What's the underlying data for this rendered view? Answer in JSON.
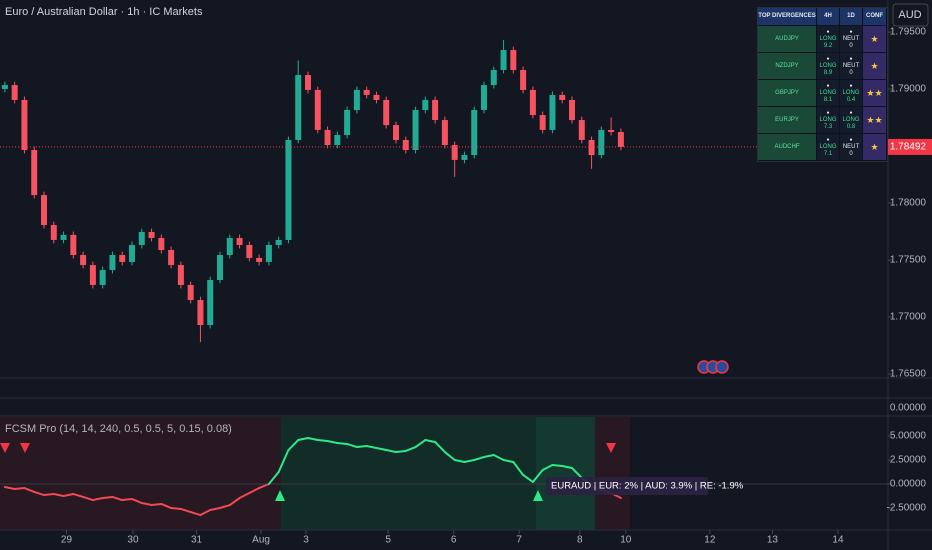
{
  "header": {
    "title": "Euro / Australian Dollar · 1h · IC Markets",
    "currency": "AUD"
  },
  "chart_data": [
    {
      "type": "candlestick",
      "open": [
        1.79,
        1.79035,
        1.78904,
        1.78465,
        1.7807,
        1.77807,
        1.77676,
        1.7772,
        1.77544,
        1.77456,
        1.77281,
        1.77412,
        1.77544,
        1.77483,
        1.77632,
        1.77746,
        1.77693,
        1.77588,
        1.77456,
        1.77281,
        1.77149,
        1.7693,
        1.77325,
        1.77544,
        1.77693,
        1.77632,
        1.77518,
        1.77483,
        1.77632,
        1.77676,
        1.78553,
        1.79123,
        1.78992,
        1.78641,
        1.78509,
        1.78597,
        1.78816,
        1.78992,
        1.78948,
        1.78904,
        1.78684,
        1.78553,
        1.78465,
        1.78816,
        1.78904,
        1.78728,
        1.78509,
        1.78378,
        1.78421,
        1.78816,
        1.79035,
        1.79167,
        1.79342,
        1.79167,
        1.78992,
        1.78772,
        1.78641,
        1.78948,
        1.78904,
        1.78728,
        1.78553,
        1.78421,
        1.78641,
        1.78623
      ],
      "high": [
        1.79065,
        1.79065,
        1.78934,
        1.78495,
        1.781,
        1.77837,
        1.7775,
        1.7775,
        1.77574,
        1.77486,
        1.77442,
        1.77574,
        1.77574,
        1.77662,
        1.77776,
        1.77776,
        1.77723,
        1.77618,
        1.77486,
        1.77311,
        1.77179,
        1.77355,
        1.77574,
        1.77723,
        1.77723,
        1.77662,
        1.77548,
        1.77662,
        1.77706,
        1.78583,
        1.7925,
        1.79153,
        1.79022,
        1.78671,
        1.78627,
        1.78846,
        1.79022,
        1.79022,
        1.78978,
        1.78934,
        1.78714,
        1.78583,
        1.78846,
        1.78934,
        1.78934,
        1.78758,
        1.78539,
        1.78451,
        1.78846,
        1.79065,
        1.79197,
        1.7943,
        1.79372,
        1.79197,
        1.79022,
        1.78802,
        1.78978,
        1.78978,
        1.78934,
        1.78758,
        1.78583,
        1.78671,
        1.7875,
        1.78653
      ],
      "low": [
        1.7897,
        1.78874,
        1.78435,
        1.7804,
        1.77777,
        1.77646,
        1.77646,
        1.77514,
        1.77426,
        1.77251,
        1.77251,
        1.77382,
        1.77453,
        1.77453,
        1.77602,
        1.77663,
        1.77558,
        1.77426,
        1.77251,
        1.77119,
        1.7678,
        1.769,
        1.77295,
        1.77514,
        1.77602,
        1.77488,
        1.77453,
        1.77453,
        1.77602,
        1.77646,
        1.78523,
        1.78962,
        1.78611,
        1.78479,
        1.78479,
        1.78567,
        1.78786,
        1.78918,
        1.78874,
        1.78654,
        1.78523,
        1.78435,
        1.78435,
        1.78786,
        1.78698,
        1.78479,
        1.7823,
        1.78348,
        1.78391,
        1.78786,
        1.79005,
        1.79137,
        1.79137,
        1.78962,
        1.78742,
        1.78611,
        1.78611,
        1.78874,
        1.78698,
        1.78523,
        1.783,
        1.78391,
        1.78593,
        1.78462
      ],
      "close": [
        1.79035,
        1.78904,
        1.78465,
        1.7807,
        1.77807,
        1.77676,
        1.7772,
        1.77544,
        1.77456,
        1.77281,
        1.77412,
        1.77544,
        1.77483,
        1.77632,
        1.77746,
        1.77693,
        1.77588,
        1.77456,
        1.77281,
        1.77149,
        1.7693,
        1.77325,
        1.77544,
        1.77693,
        1.77632,
        1.77518,
        1.77483,
        1.77632,
        1.77676,
        1.78553,
        1.79123,
        1.78992,
        1.78641,
        1.78509,
        1.78597,
        1.78816,
        1.78992,
        1.78948,
        1.78904,
        1.78684,
        1.78553,
        1.78465,
        1.78816,
        1.78904,
        1.78728,
        1.78509,
        1.78378,
        1.78421,
        1.78816,
        1.79035,
        1.79167,
        1.79342,
        1.79167,
        1.78992,
        1.78772,
        1.78641,
        1.78948,
        1.78904,
        1.78728,
        1.78553,
        1.78421,
        1.78641,
        1.78623,
        1.78492
      ],
      "up_color": "#22ab94",
      "down_color": "#f7525f",
      "last_price_color": "#f23645",
      "xlim": [
        0,
        90
      ],
      "ylim": [
        1.76465,
        1.79781
      ],
      "yticks": [
        {
          "value": 1.765,
          "label": "1.76500"
        },
        {
          "value": 1.77,
          "label": "1.77000"
        },
        {
          "value": 1.775,
          "label": "1.77500"
        },
        {
          "value": 1.78,
          "label": "1.78000"
        },
        {
          "value": 1.79,
          "label": "1.79000"
        },
        {
          "value": 1.795,
          "label": "1.79500"
        }
      ],
      "grid": false
    },
    {
      "type": "line",
      "title": "FCSM Pro (14, 14, 240, 0.5, 0.5, 5, 0.15, 0.08)",
      "values": [
        -0.31,
        -0.52,
        -0.42,
        -0.83,
        -1.15,
        -1.04,
        -1.25,
        -1.04,
        -1.35,
        -1.67,
        -1.46,
        -1.35,
        -1.67,
        -1.56,
        -1.98,
        -2.19,
        -2.08,
        -2.5,
        -2.6,
        -2.92,
        -3.23,
        -2.71,
        -2.5,
        -2.19,
        -1.46,
        -0.94,
        -0.42,
        0,
        1.25,
        3.54,
        4.58,
        4.79,
        4.58,
        4.48,
        4.27,
        4.17,
        3.85,
        3.96,
        3.75,
        3.54,
        3.33,
        3.44,
        3.85,
        4.58,
        4.38,
        3.33,
        2.5,
        2.29,
        2.5,
        2.81,
        3.02,
        2.5,
        2.29,
        0.94,
        0.21,
        1.46,
        1.98,
        1.88,
        1.67,
        0.63,
        -0.21,
        -0.63,
        -0.94,
        -1.46
      ],
      "pos_color": "#2ee88a",
      "neg_color": "#f04a55",
      "xlim": [
        0,
        90
      ],
      "ylim": [
        -4.79,
        6.98
      ],
      "yticks": [
        {
          "value": -2.5,
          "label": "-2.50000"
        },
        {
          "value": 0,
          "label": "0.00000"
        },
        {
          "value": 2.5,
          "label": "2.50000"
        },
        {
          "value": 5,
          "label": "5.00000"
        }
      ],
      "xticks": [
        {
          "value": 6.8,
          "label": "29"
        },
        {
          "value": 13.6,
          "label": "30"
        },
        {
          "value": 20.1,
          "label": "31"
        },
        {
          "value": 26.7,
          "label": "Aug"
        },
        {
          "value": 31.3,
          "label": "3"
        },
        {
          "value": 39.7,
          "label": "5"
        },
        {
          "value": 46.4,
          "label": "6"
        },
        {
          "value": 53.1,
          "label": "7"
        },
        {
          "value": 59.3,
          "label": "8"
        },
        {
          "value": 64,
          "label": "10"
        },
        {
          "value": 72.6,
          "label": "12"
        },
        {
          "value": 79,
          "label": "13"
        },
        {
          "value": 85.7,
          "label": "14"
        }
      ],
      "annotation": "EURAUD | EUR: 2% | AUD: 3.9% | RE: -1.9%",
      "grid": false
    }
  ],
  "volume_pane": {
    "ytick_label": "0.00000"
  },
  "divergence_table": {
    "title": "TOP DIVERGENCES",
    "columns": [
      "4H",
      "1D",
      "CONF"
    ],
    "rows": [
      {
        "pair": "AUDJPY",
        "h4": {
          "signal": "LONG",
          "score": 9.2
        },
        "d1": {
          "signal": "NEUT",
          "score": 0
        },
        "conf": 1
      },
      {
        "pair": "NZDJPY",
        "h4": {
          "signal": "LONG",
          "score": 8.9
        },
        "d1": {
          "signal": "NEUT",
          "score": 0
        },
        "conf": 1
      },
      {
        "pair": "GBPJPY",
        "h4": {
          "signal": "LONG",
          "score": 8.1
        },
        "d1": {
          "signal": "LONG",
          "score": 0.4
        },
        "conf": 2
      },
      {
        "pair": "EURJPY",
        "h4": {
          "signal": "LONG",
          "score": 7.3
        },
        "d1": {
          "signal": "LONG",
          "score": 0.8
        },
        "conf": 2
      },
      {
        "pair": "AUDCHF",
        "h4": {
          "signal": "LONG",
          "score": 7.1
        },
        "d1": {
          "signal": "NEUT",
          "score": 0
        },
        "conf": 1
      }
    ]
  }
}
